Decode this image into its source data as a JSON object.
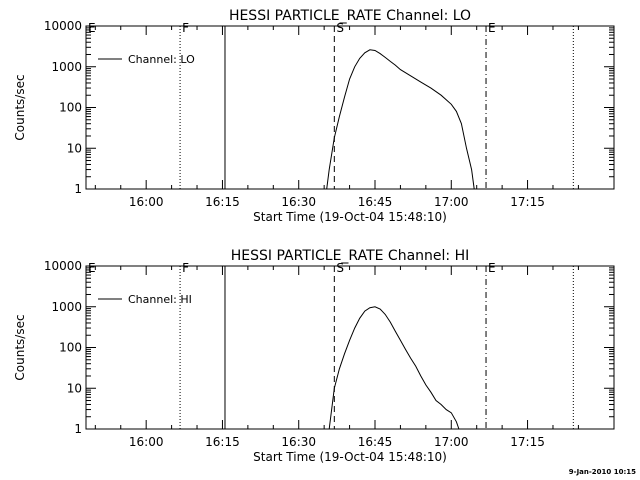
{
  "chart_data": [
    {
      "type": "line",
      "title": "HESSI PARTICLE_RATE Channel: LO",
      "xlabel": "Start Time (19-Oct-04 15:48:10)",
      "ylabel": "Counts/sec",
      "yscale": "log",
      "ylim": [
        1,
        10000
      ],
      "xlim": [
        "15:48:10",
        "17:32:00"
      ],
      "xticks": [
        "16:00",
        "16:15",
        "16:30",
        "16:45",
        "17:00",
        "17:15"
      ],
      "yticks": [
        "1",
        "10",
        "100",
        "1000",
        "10000"
      ],
      "grid": false,
      "legend": {
        "position": "top-left",
        "entries": [
          "Channel: LO"
        ]
      },
      "markers": [
        {
          "label": "E",
          "time": "15:48:10",
          "style": "dash-dot"
        },
        {
          "label": "F",
          "time": "16:06:40",
          "style": "dotted"
        },
        {
          "label": "",
          "time": "16:15:30",
          "style": "solid"
        },
        {
          "label": "S",
          "time": "16:37:00",
          "style": "dashed"
        },
        {
          "label": "E",
          "time": "17:06:50",
          "style": "dash-dot"
        },
        {
          "label": "",
          "time": "17:24:00",
          "style": "dotted"
        }
      ],
      "series": [
        {
          "name": "Channel: LO",
          "x": [
            "16:35:30",
            "16:36:00",
            "16:37:00",
            "16:38:00",
            "16:39:00",
            "16:40:00",
            "16:41:00",
            "16:42:00",
            "16:43:00",
            "16:44:00",
            "16:45:00",
            "16:46:00",
            "16:47:00",
            "16:48:00",
            "16:49:00",
            "16:50:00",
            "16:52:00",
            "16:54:00",
            "16:56:00",
            "16:58:00",
            "17:00:00",
            "17:01:00",
            "17:02:00",
            "17:03:00",
            "17:04:00",
            "17:04:30"
          ],
          "y": [
            1,
            3,
            18,
            60,
            180,
            500,
            1000,
            1600,
            2200,
            2600,
            2500,
            2100,
            1700,
            1350,
            1100,
            850,
            600,
            420,
            300,
            200,
            120,
            80,
            40,
            10,
            3,
            1
          ]
        }
      ]
    },
    {
      "type": "line",
      "title": "HESSI PARTICLE_RATE Channel: HI",
      "xlabel": "Start Time (19-Oct-04 15:48:10)",
      "ylabel": "Counts/sec",
      "yscale": "log",
      "ylim": [
        1,
        10000
      ],
      "xlim": [
        "15:48:10",
        "17:32:00"
      ],
      "xticks": [
        "16:00",
        "16:15",
        "16:30",
        "16:45",
        "17:00",
        "17:15"
      ],
      "yticks": [
        "1",
        "10",
        "100",
        "1000",
        "10000"
      ],
      "grid": false,
      "legend": {
        "position": "top-left",
        "entries": [
          "Channel: HI"
        ]
      },
      "markers": [
        {
          "label": "E",
          "time": "15:48:10",
          "style": "dash-dot"
        },
        {
          "label": "F",
          "time": "16:06:40",
          "style": "dotted"
        },
        {
          "label": "",
          "time": "16:15:30",
          "style": "solid"
        },
        {
          "label": "S",
          "time": "16:37:00",
          "style": "dashed"
        },
        {
          "label": "E",
          "time": "17:06:50",
          "style": "dash-dot"
        },
        {
          "label": "",
          "time": "17:24:00",
          "style": "dotted"
        }
      ],
      "series": [
        {
          "name": "Channel: HI",
          "x": [
            "16:36:00",
            "16:37:00",
            "16:38:00",
            "16:39:00",
            "16:40:00",
            "16:41:00",
            "16:42:00",
            "16:43:00",
            "16:44:00",
            "16:45:00",
            "16:46:00",
            "16:47:00",
            "16:48:00",
            "16:49:00",
            "16:50:00",
            "16:51:00",
            "16:52:00",
            "16:53:00",
            "16:54:00",
            "16:55:00",
            "16:56:00",
            "16:57:00",
            "16:58:00",
            "16:59:00",
            "17:00:00",
            "17:01:00",
            "17:01:30"
          ],
          "y": [
            1,
            10,
            30,
            70,
            150,
            300,
            520,
            780,
            950,
            1000,
            880,
            650,
            420,
            250,
            150,
            90,
            55,
            35,
            20,
            12,
            8,
            5,
            4,
            3,
            2.5,
            1.5,
            1
          ]
        }
      ]
    }
  ],
  "footer": {
    "timestamp": "9-Jan-2010 10:15"
  }
}
